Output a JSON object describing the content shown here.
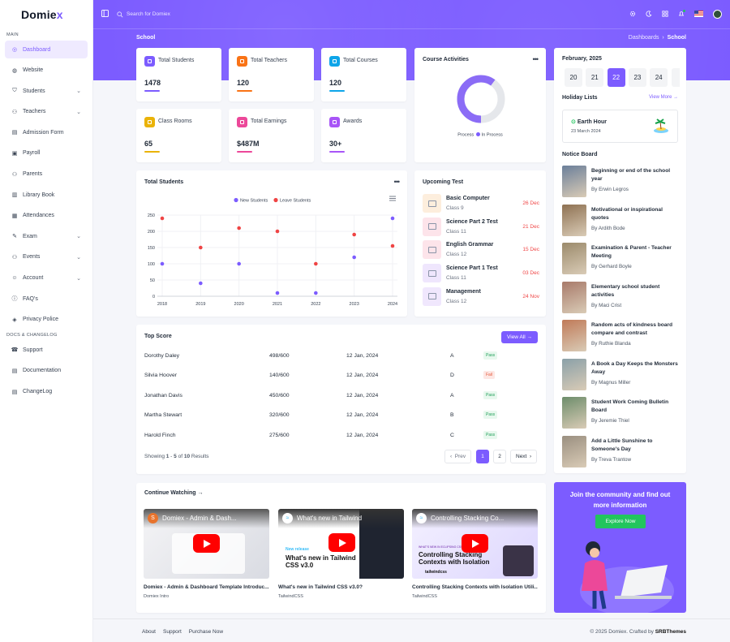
{
  "brand": {
    "name_prefix": "Domie",
    "name_suffix": "x"
  },
  "topbar": {
    "search_placeholder": "Search for Domiex"
  },
  "page": {
    "title": "School",
    "breadcrumb": {
      "parent": "Dashboards",
      "current": "School"
    }
  },
  "sidebar": {
    "main_label": "MAIN",
    "items": [
      {
        "label": "Dashboard",
        "icon": "dashboard-icon",
        "active": true
      },
      {
        "label": "Website",
        "icon": "globe-icon"
      },
      {
        "label": "Students",
        "icon": "students-icon",
        "chevron": true
      },
      {
        "label": "Teachers",
        "icon": "teachers-icon",
        "chevron": true
      },
      {
        "label": "Admission Form",
        "icon": "form-icon"
      },
      {
        "label": "Payroll",
        "icon": "wallet-icon"
      },
      {
        "label": "Parents",
        "icon": "users-icon"
      },
      {
        "label": "Library Book",
        "icon": "book-icon"
      },
      {
        "label": "Attendances",
        "icon": "calendar-icon"
      },
      {
        "label": "Exam",
        "icon": "pen-icon",
        "chevron": true
      },
      {
        "label": "Events",
        "icon": "events-icon",
        "chevron": true
      },
      {
        "label": "Account",
        "icon": "account-icon",
        "chevron": true
      },
      {
        "label": "FAQ's",
        "icon": "faq-icon"
      },
      {
        "label": "Privacy Police",
        "icon": "privacy-icon"
      }
    ],
    "docs_label": "DOCS & CHANGELOG",
    "docs_items": [
      {
        "label": "Support",
        "icon": "support-icon"
      },
      {
        "label": "Documentation",
        "icon": "doc-icon"
      },
      {
        "label": "ChangeLog",
        "icon": "changelog-icon"
      }
    ]
  },
  "stats": [
    {
      "label": "Total Students",
      "value": "1478",
      "color": "#7c5cff"
    },
    {
      "label": "Total Teachers",
      "value": "120",
      "color": "#f97316"
    },
    {
      "label": "Total Courses",
      "value": "120",
      "color": "#0ea5e9"
    },
    {
      "label": "Class Rooms",
      "value": "65",
      "color": "#eab308"
    },
    {
      "label": "Total Earnings",
      "value": "$487M",
      "color": "#ec4899"
    },
    {
      "label": "Awards",
      "value": "30+",
      "color": "#a855f7"
    }
  ],
  "course_activities": {
    "title": "Course Activities",
    "legend": [
      "Process",
      "In Process"
    ],
    "in_process_pct": 60
  },
  "total_students": {
    "title": "Total Students"
  },
  "chart_data": {
    "type": "line",
    "x": [
      "2018",
      "2019",
      "2020",
      "2021",
      "2022",
      "2023",
      "2024"
    ],
    "series": [
      {
        "name": "New Students",
        "values": [
          100,
          40,
          100,
          10,
          10,
          120,
          240
        ]
      },
      {
        "name": "Leave Students",
        "values": [
          240,
          150,
          210,
          200,
          100,
          190,
          155
        ]
      }
    ],
    "ylim": [
      0,
      250
    ],
    "yticks": [
      "250",
      "200",
      "150",
      "100",
      "50",
      "0"
    ],
    "legend_position": "top-center"
  },
  "upcoming": {
    "title": "Upcoming Test",
    "items": [
      {
        "name": "Basic Computer",
        "cls": "Class 9",
        "date": "26 Dec",
        "icon": "computer-icon",
        "bg": "#fdeedd"
      },
      {
        "name": "Science Part 2 Test",
        "cls": "Class 11",
        "date": "21 Dec",
        "icon": "flask-icon",
        "bg": "#fde4ea"
      },
      {
        "name": "English Grammar",
        "cls": "Class 12",
        "date": "15 Dec",
        "icon": "book-icon",
        "bg": "#fde4ea"
      },
      {
        "name": "Science Part 1 Test",
        "cls": "Class 11",
        "date": "03 Dec",
        "icon": "flask-icon",
        "bg": "#efe6fd"
      },
      {
        "name": "Management",
        "cls": "Class 12",
        "date": "24 Nov",
        "icon": "chart-icon",
        "bg": "#f0e7fd"
      }
    ]
  },
  "top_score": {
    "title": "Top Score",
    "view_all": "View All",
    "rows": [
      {
        "name": "Dorothy Daley",
        "score": "498/600",
        "date": "12 Jan, 2024",
        "grade": "A",
        "status": "Pass"
      },
      {
        "name": "Silvia Hoover",
        "score": "140/600",
        "date": "12 Jan, 2024",
        "grade": "D",
        "status": "Fail"
      },
      {
        "name": "Jonathan Davis",
        "score": "450/600",
        "date": "12 Jan, 2024",
        "grade": "A",
        "status": "Pass"
      },
      {
        "name": "Martha Stewart",
        "score": "320/600",
        "date": "12 Jan, 2024",
        "grade": "B",
        "status": "Pass"
      },
      {
        "name": "Harold Finch",
        "score": "275/600",
        "date": "12 Jan, 2024",
        "grade": "C",
        "status": "Pass"
      }
    ],
    "showing_a": "Showing ",
    "from": "1",
    "dash": " - ",
    "to": "5",
    "of": " of ",
    "total": "10",
    "results": " Results",
    "prev": "Prev",
    "pages": [
      "1",
      "2"
    ],
    "next": "Next"
  },
  "calendar": {
    "month": "February, 2025",
    "days": [
      "20",
      "21",
      "22",
      "23",
      "24"
    ],
    "selected": "22"
  },
  "holiday": {
    "title": "Holiday Lists",
    "view_more": "View More",
    "name": "Earth Hour",
    "date": "23 March 2024"
  },
  "notice": {
    "title": "Notice Board",
    "items": [
      {
        "title": "Beginning or end of the school year",
        "by": "By Erwin Legros",
        "color": "#6b7f9a"
      },
      {
        "title": "Motivational or inspirational quotes",
        "by": "By Ardith Bode",
        "color": "#8e7152"
      },
      {
        "title": "Examination & Parent - Teacher Meeting",
        "by": "By Gerhard Boyle",
        "color": "#9b8a6b"
      },
      {
        "title": "Elementary school student activities",
        "by": "By Maci Crist",
        "color": "#a87a6a"
      },
      {
        "title": "Random acts of kindness board compare and contrast",
        "by": "By Ruthie Blanda",
        "color": "#c07a58"
      },
      {
        "title": "A Book a Day Keeps the Monsters Away",
        "by": "By Magnus Miller",
        "color": "#8aa0a8"
      },
      {
        "title": "Student Work Coming Bulletin Board",
        "by": "By Jeremie Thiel",
        "color": "#6d8d6b"
      },
      {
        "title": "Add a Little Sunshine to Someone's Day",
        "by": "By Treva Trantow",
        "color": "#9a8f80"
      }
    ]
  },
  "continue": {
    "title": "Continue Watching",
    "videos": [
      {
        "head": "Domiex - Admin & Dash...",
        "title": "Domiex - Admin & Dashboard Template Introduc...",
        "channel": "Domiex Intro",
        "avatar": "S"
      },
      {
        "head": "What's new in Tailwind",
        "title": "What's new in Tailwind CSS v3.0?",
        "channel": "TailwindCSS",
        "thumb_tag": "New release",
        "thumb_text": "What's new in Tailwind CSS v3.0"
      },
      {
        "head": "Controlling Stacking Co...",
        "title": "Controlling Stacking Contexts with Isolation Utili...",
        "channel": "TailwindCSS",
        "thumb_tag": "WHAT'S NEW IN ECLIPSING CSS",
        "thumb_text": "Controlling Stacking Contexts with Isolation",
        "thumb_brand": "tailwindcss"
      }
    ]
  },
  "community": {
    "text": "Join the community and find out more information",
    "button": "Explore Now"
  },
  "footer": {
    "links": [
      "About",
      "Support",
      "Purchase Now"
    ],
    "copy_pre": "© 2025 Domiex. Crafted by ",
    "copy_brand": "SRBThemes"
  }
}
